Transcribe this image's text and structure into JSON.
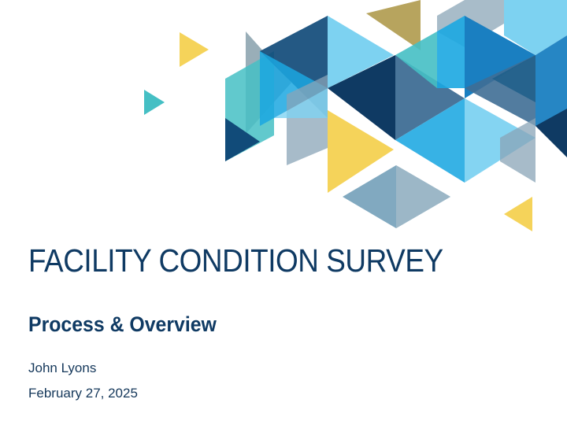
{
  "slide": {
    "title": "FACILITY CONDITION SURVEY",
    "subtitle": "Process & Overview",
    "author": "John Lyons",
    "date": "February 27, 2025"
  },
  "palette": {
    "navy": "#0f3a63",
    "dark_blue": "#114b79",
    "mid_blue": "#1a7fc1",
    "bright_blue": "#1ba7e1",
    "sky_blue": "#6fcdf0",
    "teal": "#45bfc4",
    "slate": "#8aa4b7",
    "yellow": "#f5d35a",
    "olive": "#b7a45e"
  }
}
